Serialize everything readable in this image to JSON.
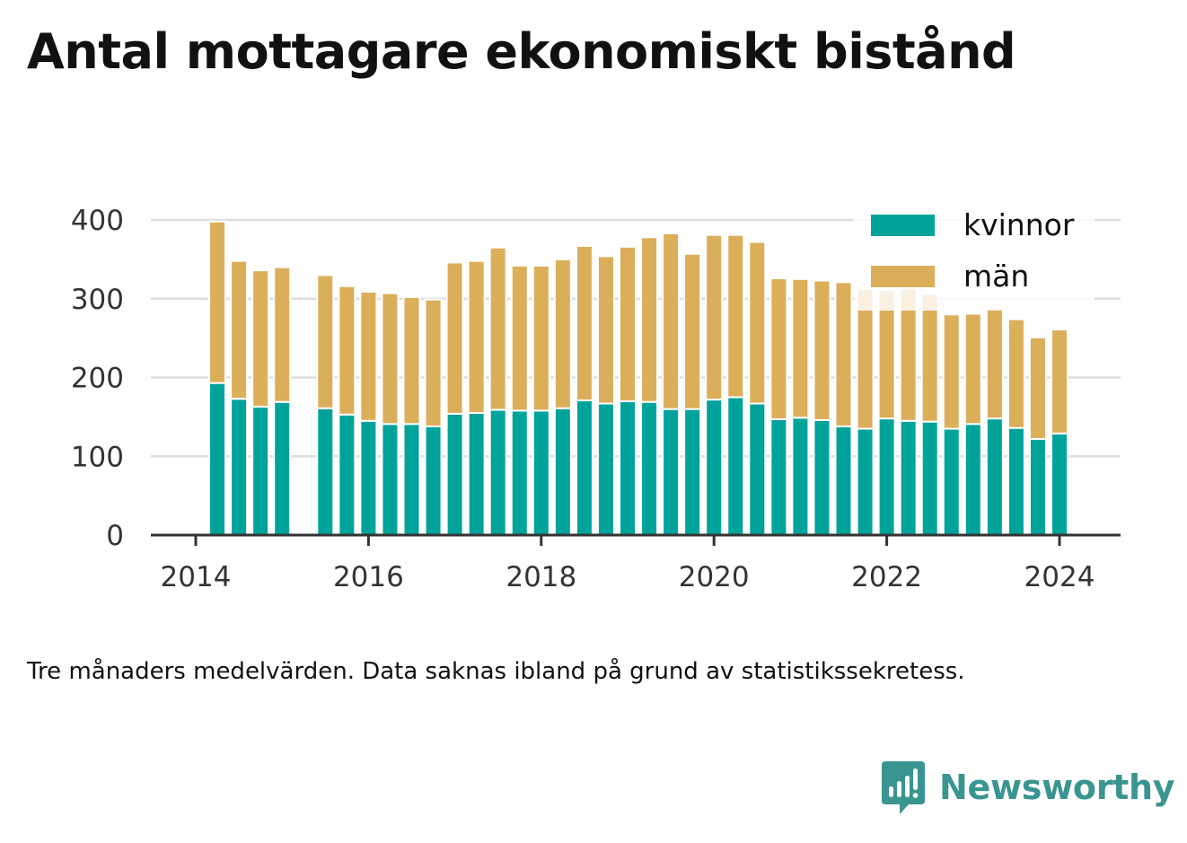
{
  "title": "Antal mottagare ekonomiskt bistånd",
  "note": "Tre månaders medelvärden. Data saknas ibland på grund av statistikssekretess.",
  "brand": {
    "name": "Newsworthy",
    "color": "#3a9590"
  },
  "legend_labels": [
    "kvinnor",
    "män"
  ],
  "x_tick_labels": [
    "2014",
    "2016",
    "2018",
    "2020",
    "2022",
    "2024"
  ],
  "y_tick_labels": [
    "0",
    "100",
    "200",
    "300",
    "400"
  ],
  "chart_data": {
    "type": "bar",
    "stacked": true,
    "title": "Antal mottagare ekonomiskt bistånd",
    "xlabel": "",
    "ylabel": "",
    "ylim": [
      0,
      400
    ],
    "yticks": [
      0,
      100,
      200,
      300,
      400
    ],
    "xticks": [
      2014,
      2016,
      2018,
      2020,
      2022,
      2024
    ],
    "grid": true,
    "legend_position": "top-right",
    "x": [
      2014.25,
      2014.5,
      2014.75,
      2015.0,
      2015.25,
      2015.5,
      2015.75,
      2016.0,
      2016.25,
      2016.5,
      2016.75,
      2017.0,
      2017.25,
      2017.5,
      2017.75,
      2018.0,
      2018.25,
      2018.5,
      2018.75,
      2019.0,
      2019.25,
      2019.5,
      2019.75,
      2020.0,
      2020.25,
      2020.5,
      2020.75,
      2021.0,
      2021.25,
      2021.5,
      2021.75,
      2022.0,
      2022.25,
      2022.5,
      2022.75,
      2023.0,
      2023.25,
      2023.5,
      2023.75,
      2024.0
    ],
    "series": [
      {
        "name": "kvinnor",
        "color": "#00a39a",
        "values": [
          193,
          173,
          163,
          169,
          null,
          161,
          153,
          145,
          141,
          141,
          138,
          154,
          155,
          159,
          158,
          158,
          161,
          171,
          167,
          170,
          169,
          160,
          160,
          172,
          175,
          167,
          147,
          149,
          146,
          138,
          135,
          148,
          145,
          144,
          135,
          141,
          148,
          136,
          122,
          129
        ]
      },
      {
        "name": "män",
        "color": "#dbae5a",
        "values": [
          205,
          175,
          173,
          171,
          null,
          169,
          163,
          164,
          166,
          161,
          161,
          192,
          193,
          206,
          184,
          184,
          189,
          196,
          187,
          196,
          209,
          223,
          197,
          209,
          206,
          205,
          179,
          176,
          177,
          183,
          177,
          163,
          168,
          162,
          145,
          140,
          140,
          138,
          129,
          132
        ]
      }
    ]
  }
}
